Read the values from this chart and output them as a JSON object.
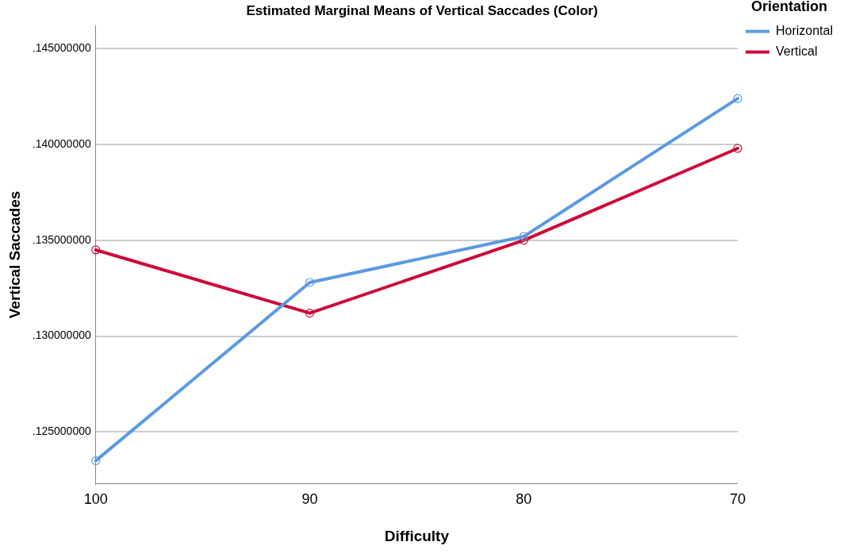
{
  "chart_data": {
    "type": "line",
    "title": "Estimated Marginal Means of Vertical Saccades (Color)",
    "xlabel": "Difficulty",
    "ylabel": "Vertical Saccades",
    "legend_title": "Orientation",
    "categories": [
      "100",
      "90",
      "80",
      "70"
    ],
    "series": [
      {
        "name": "Horizontal",
        "color": "#5b9ae0",
        "values": [
          0.1235,
          0.1328,
          0.1352,
          0.1424
        ]
      },
      {
        "name": "Vertical",
        "color": "#cc0a3a",
        "values": [
          0.1345,
          0.1312,
          0.135,
          0.1398
        ]
      }
    ],
    "ylim": [
      0.1223,
      0.1462
    ],
    "yticks": [
      {
        "value": 0.125,
        "label": ".125000000"
      },
      {
        "value": 0.13,
        "label": ".130000000"
      },
      {
        "value": 0.135,
        "label": ".135000000"
      },
      {
        "value": 0.14,
        "label": ".140000000"
      },
      {
        "value": 0.145,
        "label": ".145000000"
      }
    ],
    "grid": "y",
    "legend": "top right",
    "marker": "circle",
    "line_style": "solid"
  }
}
